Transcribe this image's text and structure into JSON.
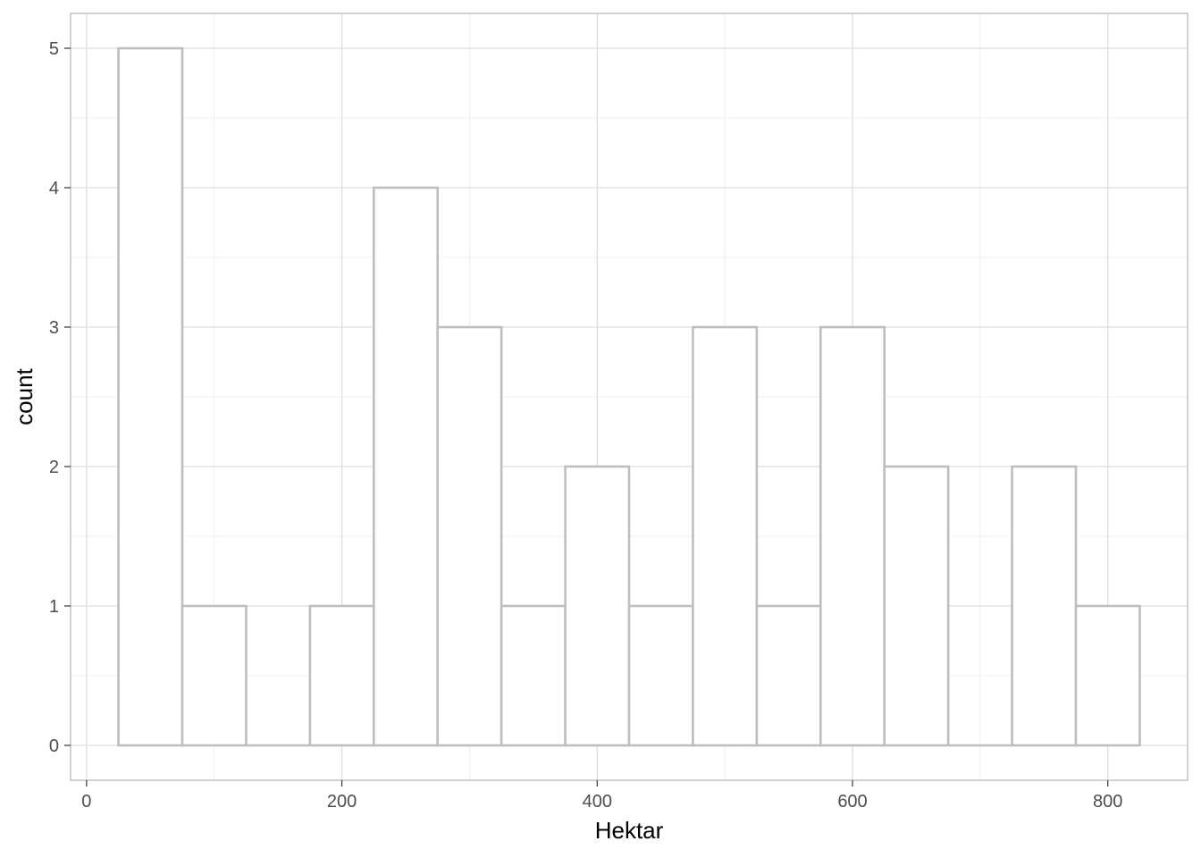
{
  "chart_data": {
    "type": "bar",
    "subtype": "histogram",
    "title": "",
    "xlabel": "Hektar",
    "ylabel": "count",
    "xlim": [
      -12.5,
      862.5
    ],
    "ylim": [
      -0.25,
      5.25
    ],
    "x_ticks": [
      0,
      200,
      400,
      600,
      800
    ],
    "y_ticks": [
      0,
      1,
      2,
      3,
      4,
      5
    ],
    "bin_width": 50,
    "bins": [
      {
        "x0": 25,
        "x1": 75,
        "count": 5
      },
      {
        "x0": 75,
        "x1": 125,
        "count": 1
      },
      {
        "x0": 125,
        "x1": 175,
        "count": 0
      },
      {
        "x0": 175,
        "x1": 225,
        "count": 1
      },
      {
        "x0": 225,
        "x1": 275,
        "count": 4
      },
      {
        "x0": 275,
        "x1": 325,
        "count": 3
      },
      {
        "x0": 325,
        "x1": 375,
        "count": 1
      },
      {
        "x0": 375,
        "x1": 425,
        "count": 2
      },
      {
        "x0": 425,
        "x1": 475,
        "count": 1
      },
      {
        "x0": 475,
        "x1": 525,
        "count": 3
      },
      {
        "x0": 525,
        "x1": 575,
        "count": 1
      },
      {
        "x0": 575,
        "x1": 625,
        "count": 3
      },
      {
        "x0": 625,
        "x1": 675,
        "count": 2
      },
      {
        "x0": 675,
        "x1": 725,
        "count": 0
      },
      {
        "x0": 725,
        "x1": 775,
        "count": 2
      },
      {
        "x0": 775,
        "x1": 825,
        "count": 1
      }
    ],
    "grid": true,
    "legend": "none",
    "colors": {
      "bar_fill": "#ffffff",
      "bar_stroke": "#bebebe",
      "grid_major": "#dedede",
      "grid_minor": "#ebebeb",
      "panel_border": "#b3b3b3"
    }
  }
}
